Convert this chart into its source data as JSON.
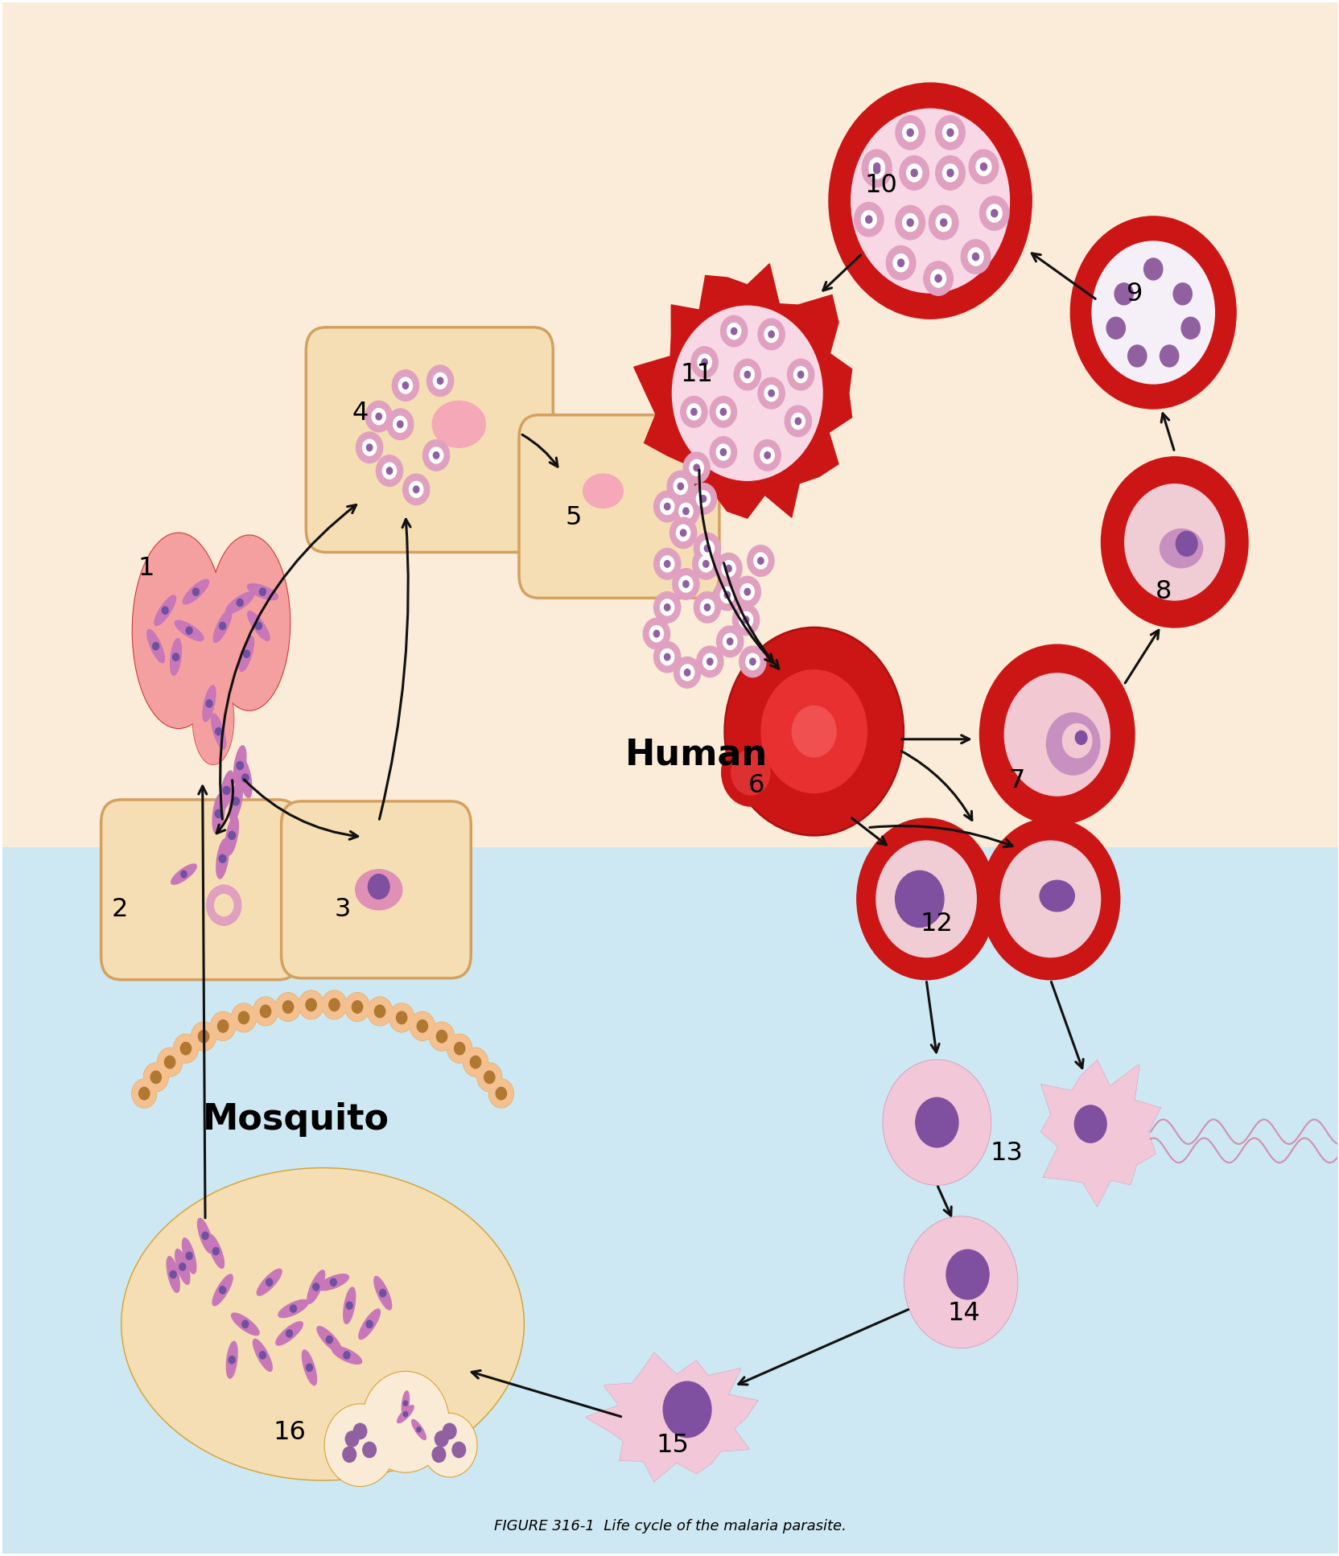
{
  "fig_width": 16.65,
  "fig_height": 19.34,
  "dpi": 100,
  "bg_human": "#faecd8",
  "bg_mosquito": "#cde8f2",
  "bg_split": 0.455,
  "red_rbc": "#cc1515",
  "red_rbc_light": "#e84040",
  "rbc_inner": "#f5c0c8",
  "pink_fill": "#f2c8d8",
  "pink_border": "#d090b0",
  "pink_nucleus": "#8050a0",
  "liver_fill": "#f5deb3",
  "liver_border": "#d4a060",
  "sporo_color": "#c878b8",
  "sporo_nucleus": "#7050a0",
  "merozo_color": "#e0a0c0",
  "merozo_inner": "#ffffff",
  "merozo_dot": "#9060a0",
  "salivary_fill": "#f5a0a0",
  "salivary_border": "#cc3333",
  "oocyst_fill": "#f5deb3",
  "oocyst_border": "#d4a030",
  "oocyst_bead_fill": "#f5c090",
  "oocyst_bead_border": "#d4a030",
  "arrow_color": "#111111",
  "arrow_lw": 2.2,
  "num_fontsize": 23,
  "label_fontsize": 32,
  "title": "FIGURE 316-1",
  "caption": "Life cycle of the malaria parasite."
}
